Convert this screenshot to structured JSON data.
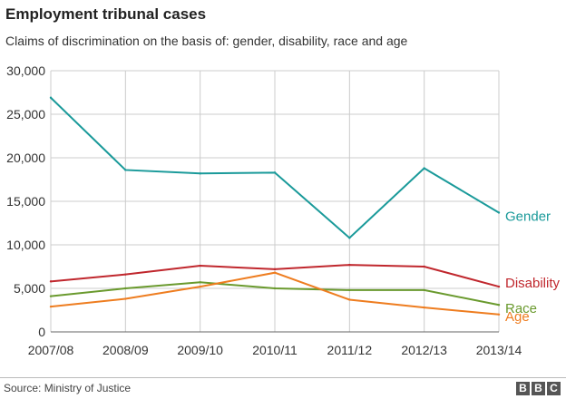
{
  "title": "Employment tribunal cases",
  "subtitle": "Claims of discrimination on the basis of: gender, disability, race and age",
  "source": "Source: Ministry of Justice",
  "logo": [
    "B",
    "B",
    "C"
  ],
  "colors": {
    "Gender": "#1a9a9a",
    "Disability": "#c0272d",
    "Race": "#6a9a2e",
    "Age": "#ee7d20",
    "grid": "#cccccc"
  },
  "chart_data": {
    "type": "line",
    "title": "Employment tribunal cases",
    "subtitle": "Claims of discrimination on the basis of: gender, disability, race and age",
    "categories": [
      "2007/08",
      "2008/09",
      "2009/10",
      "2010/11",
      "2011/12",
      "2012/13",
      "2013/14"
    ],
    "ylim": [
      0,
      30000
    ],
    "yticks": [
      0,
      5000,
      10000,
      15000,
      20000,
      25000,
      30000
    ],
    "ytick_labels": [
      "0",
      "5,000",
      "10,000",
      "15,000",
      "20,000",
      "25,000",
      "30,000"
    ],
    "grid": true,
    "legend": "end-of-line labels, right",
    "series": [
      {
        "name": "Gender",
        "values": [
          26900,
          18600,
          18200,
          18300,
          10800,
          18800,
          13700
        ]
      },
      {
        "name": "Disability",
        "values": [
          5800,
          6600,
          7600,
          7200,
          7700,
          7500,
          5200
        ]
      },
      {
        "name": "Race",
        "values": [
          4100,
          5000,
          5700,
          5000,
          4800,
          4800,
          3100
        ]
      },
      {
        "name": "Age",
        "values": [
          2900,
          3800,
          5200,
          6800,
          3700,
          2800,
          2000
        ]
      }
    ]
  }
}
